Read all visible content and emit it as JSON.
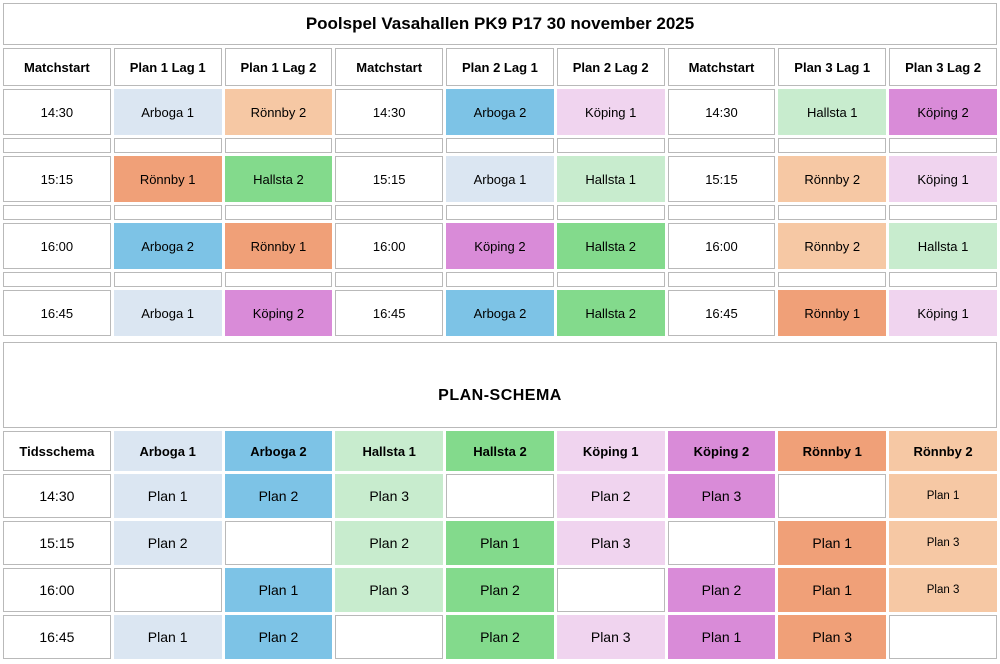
{
  "title": "Poolspel Vasahallen PK9 P17 30 november 2025",
  "colors": {
    "grid": "#b9b9b9",
    "background": "#ffffff",
    "text": "#000000"
  },
  "teams": {
    "arboga1": {
      "label": "Arboga 1",
      "color": "#dbe6f2"
    },
    "arboga2": {
      "label": "Arboga 2",
      "color": "#7dc3e6"
    },
    "hallsta1": {
      "label": "Hallsta 1",
      "color": "#c8ecce"
    },
    "hallsta2": {
      "label": "Hallsta 2",
      "color": "#83da8c"
    },
    "koping1": {
      "label": "Köping 1",
      "color": "#f0d4ef"
    },
    "koping2": {
      "label": "Köping 2",
      "color": "#d98bd8"
    },
    "ronnby1": {
      "label": "Rönnby 1",
      "color": "#f0a078"
    },
    "ronnby2": {
      "label": "Rönnby 2",
      "color": "#f6c8a4"
    }
  },
  "match_table": {
    "headers": [
      "Matchstart",
      "Plan 1 Lag 1",
      "Plan 1 Lag 2",
      "Matchstart",
      "Plan 2 Lag 1",
      "Plan 2 Lag 2",
      "Matchstart",
      "Plan 3 Lag 1",
      "Plan 3 Lag 2"
    ],
    "rows": [
      {
        "time": "14:30",
        "matches": [
          [
            "arboga1",
            "ronnby2"
          ],
          [
            "arboga2",
            "koping1"
          ],
          [
            "hallsta1",
            "koping2"
          ]
        ]
      },
      {
        "time": "15:15",
        "matches": [
          [
            "ronnby1",
            "hallsta2"
          ],
          [
            "arboga1",
            "hallsta1"
          ],
          [
            "ronnby2",
            "koping1"
          ]
        ]
      },
      {
        "time": "16:00",
        "matches": [
          [
            "arboga2",
            "ronnby1"
          ],
          [
            "koping2",
            "hallsta2"
          ],
          [
            "ronnby2",
            "hallsta1"
          ]
        ]
      },
      {
        "time": "16:45",
        "matches": [
          [
            "arboga1",
            "koping2"
          ],
          [
            "arboga2",
            "hallsta2"
          ],
          [
            "ronnby1",
            "koping1"
          ]
        ]
      }
    ]
  },
  "plan_schema": {
    "heading": "PLAN-SCHEMA",
    "time_header": "Tidsschema",
    "team_order": [
      "arboga1",
      "arboga2",
      "hallsta1",
      "hallsta2",
      "koping1",
      "koping2",
      "ronnby1",
      "ronnby2"
    ],
    "rows": [
      {
        "time": "14:30",
        "plans": [
          "Plan 1",
          "Plan 2",
          "Plan 3",
          "",
          "Plan 2",
          "Plan 3",
          "",
          "Plan 1"
        ]
      },
      {
        "time": "15:15",
        "plans": [
          "Plan 2",
          "",
          "Plan 2",
          "Plan 1",
          "Plan 3",
          "",
          "Plan 1",
          "Plan 3"
        ]
      },
      {
        "time": "16:00",
        "plans": [
          "",
          "Plan 1",
          "Plan 3",
          "Plan 2",
          "",
          "Plan 2",
          "Plan 1",
          "Plan 3"
        ]
      },
      {
        "time": "16:45",
        "plans": [
          "Plan 1",
          "Plan 2",
          "",
          "Plan 2",
          "Plan 3",
          "Plan 1",
          "Plan 3",
          ""
        ]
      }
    ]
  }
}
